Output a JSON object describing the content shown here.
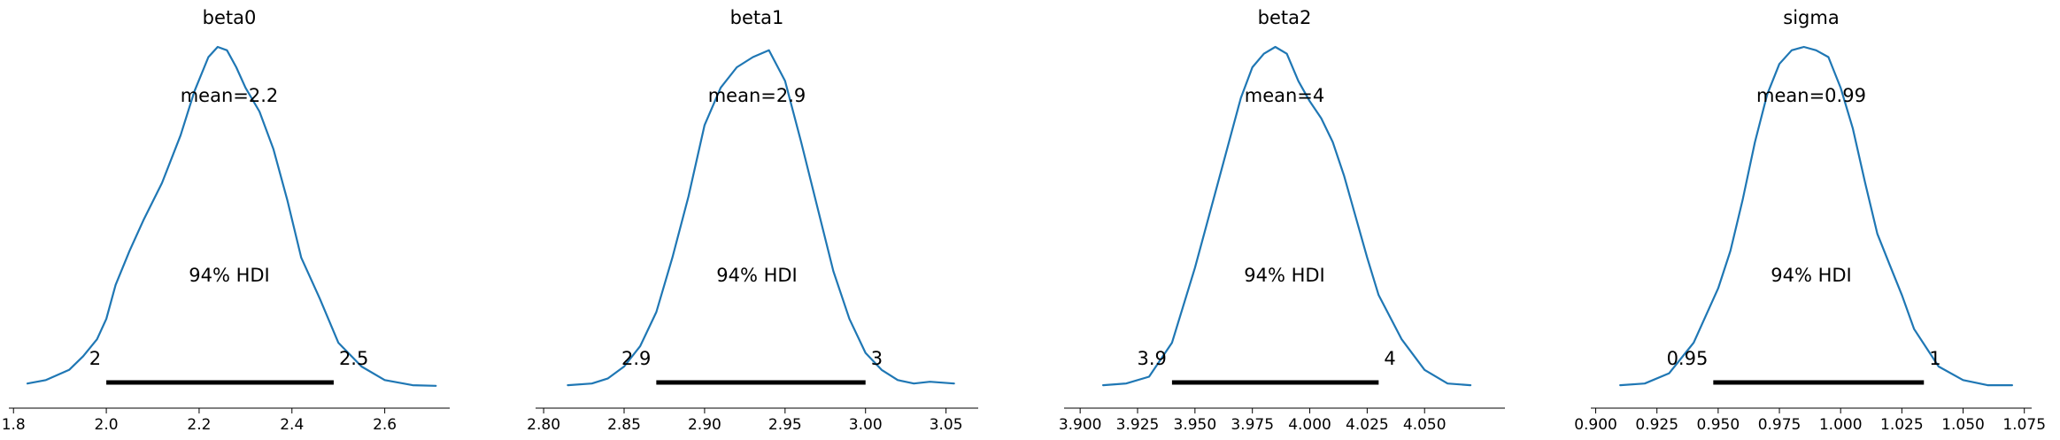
{
  "colors": {
    "kde": "#1f77b4",
    "text": "#000000"
  },
  "chart_data": [
    {
      "type": "line",
      "title": "beta0",
      "mean_label": "mean=2.2",
      "hdi_label": "94% HDI",
      "hdi": [
        2.0,
        2.49
      ],
      "hdi_labels": [
        "2",
        "2.5"
      ],
      "xlim": [
        1.79,
        2.74
      ],
      "xticks": [
        1.8,
        2.0,
        2.2,
        2.4,
        2.6
      ],
      "xtick_labels": [
        "1.8",
        "2.0",
        "2.2",
        "2.4",
        "2.6"
      ],
      "x": [
        1.83,
        1.87,
        1.92,
        1.95,
        1.98,
        2.0,
        2.02,
        2.05,
        2.08,
        2.12,
        2.16,
        2.19,
        2.22,
        2.24,
        2.26,
        2.28,
        2.3,
        2.33,
        2.36,
        2.39,
        2.42,
        2.46,
        2.5,
        2.55,
        2.6,
        2.66,
        2.71
      ],
      "y": [
        0.01,
        0.02,
        0.05,
        0.09,
        0.14,
        0.2,
        0.3,
        0.4,
        0.49,
        0.6,
        0.74,
        0.87,
        0.97,
        1.0,
        0.99,
        0.94,
        0.88,
        0.81,
        0.7,
        0.55,
        0.38,
        0.26,
        0.13,
        0.06,
        0.02,
        0.005,
        0.003
      ]
    },
    {
      "type": "line",
      "title": "beta1",
      "mean_label": "mean=2.9",
      "hdi_label": "94% HDI",
      "hdi": [
        2.87,
        3.0
      ],
      "hdi_labels": [
        "2.9",
        "3"
      ],
      "xlim": [
        2.795,
        3.07
      ],
      "xticks": [
        2.8,
        2.85,
        2.9,
        2.95,
        3.0,
        3.05
      ],
      "xtick_labels": [
        "2.80",
        "2.85",
        "2.90",
        "2.95",
        "3.00",
        "3.05"
      ],
      "x": [
        2.815,
        2.83,
        2.84,
        2.85,
        2.86,
        2.87,
        2.88,
        2.89,
        2.9,
        2.91,
        2.92,
        2.93,
        2.94,
        2.95,
        2.96,
        2.97,
        2.98,
        2.99,
        3.0,
        3.01,
        3.02,
        3.03,
        3.04,
        3.055
      ],
      "y": [
        0.005,
        0.01,
        0.025,
        0.06,
        0.12,
        0.22,
        0.38,
        0.56,
        0.77,
        0.88,
        0.94,
        0.97,
        0.99,
        0.9,
        0.72,
        0.53,
        0.34,
        0.2,
        0.1,
        0.05,
        0.02,
        0.01,
        0.015,
        0.01
      ]
    },
    {
      "type": "line",
      "title": "beta2",
      "mean_label": "mean=4",
      "hdi_label": "94% HDI",
      "hdi": [
        3.94,
        4.03
      ],
      "hdi_labels": [
        "3.9",
        "4"
      ],
      "xlim": [
        3.893,
        4.085
      ],
      "xticks": [
        3.9,
        3.925,
        3.95,
        3.975,
        4.0,
        4.025,
        4.05
      ],
      "xtick_labels": [
        "3.900",
        "3.925",
        "3.950",
        "3.975",
        "4.000",
        "4.025",
        "4.050"
      ],
      "x": [
        3.91,
        3.92,
        3.93,
        3.94,
        3.95,
        3.96,
        3.97,
        3.975,
        3.98,
        3.985,
        3.99,
        3.995,
        4.0,
        4.005,
        4.01,
        4.015,
        4.02,
        4.025,
        4.03,
        4.04,
        4.05,
        4.06,
        4.07
      ],
      "y": [
        0.005,
        0.01,
        0.03,
        0.13,
        0.35,
        0.6,
        0.85,
        0.94,
        0.98,
        1.0,
        0.98,
        0.9,
        0.84,
        0.79,
        0.72,
        0.62,
        0.5,
        0.38,
        0.27,
        0.14,
        0.05,
        0.01,
        0.005
      ]
    },
    {
      "type": "line",
      "title": "sigma",
      "mean_label": "mean=0.99",
      "hdi_label": "94% HDI",
      "hdi": [
        0.948,
        1.034
      ],
      "hdi_labels": [
        "0.95",
        "1"
      ],
      "xlim": [
        0.898,
        1.078
      ],
      "xticks": [
        0.9,
        0.925,
        0.95,
        0.975,
        1.0,
        1.025,
        1.05,
        1.075
      ],
      "xtick_labels": [
        "0.900",
        "0.925",
        "0.950",
        "0.975",
        "1.000",
        "1.025",
        "1.050",
        "1.075"
      ],
      "x": [
        0.91,
        0.92,
        0.93,
        0.94,
        0.95,
        0.955,
        0.96,
        0.965,
        0.97,
        0.975,
        0.98,
        0.985,
        0.99,
        0.995,
        1.0,
        1.005,
        1.01,
        1.015,
        1.02,
        1.025,
        1.03,
        1.04,
        1.05,
        1.06,
        1.07
      ],
      "y": [
        0.005,
        0.01,
        0.04,
        0.13,
        0.29,
        0.4,
        0.55,
        0.72,
        0.86,
        0.95,
        0.99,
        1.0,
        0.99,
        0.97,
        0.88,
        0.76,
        0.6,
        0.45,
        0.36,
        0.27,
        0.17,
        0.06,
        0.02,
        0.005,
        0.005
      ]
    }
  ]
}
